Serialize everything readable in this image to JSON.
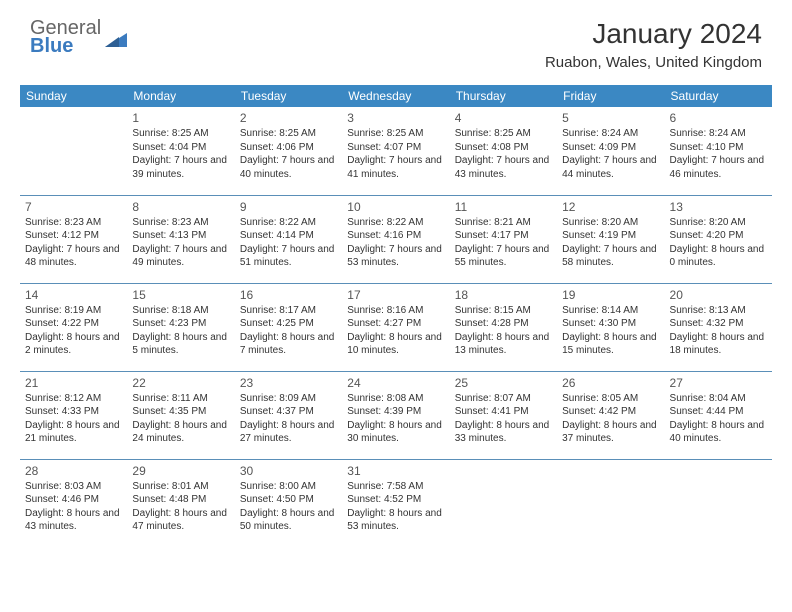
{
  "logo": {
    "line1": "General",
    "line2": "Blue"
  },
  "title": "January 2024",
  "location": "Ruabon, Wales, United Kingdom",
  "colors": {
    "header_bg": "#3b88c3",
    "header_text": "#ffffff",
    "divider": "#5a8fb8",
    "logo_gray": "#666666",
    "logo_blue": "#3b7bbf",
    "body_text": "#333333",
    "background": "#ffffff"
  },
  "day_headers": [
    "Sunday",
    "Monday",
    "Tuesday",
    "Wednesday",
    "Thursday",
    "Friday",
    "Saturday"
  ],
  "days": [
    null,
    {
      "n": "1",
      "sr": "8:25 AM",
      "ss": "4:04 PM",
      "dl": "7 hours and 39 minutes."
    },
    {
      "n": "2",
      "sr": "8:25 AM",
      "ss": "4:06 PM",
      "dl": "7 hours and 40 minutes."
    },
    {
      "n": "3",
      "sr": "8:25 AM",
      "ss": "4:07 PM",
      "dl": "7 hours and 41 minutes."
    },
    {
      "n": "4",
      "sr": "8:25 AM",
      "ss": "4:08 PM",
      "dl": "7 hours and 43 minutes."
    },
    {
      "n": "5",
      "sr": "8:24 AM",
      "ss": "4:09 PM",
      "dl": "7 hours and 44 minutes."
    },
    {
      "n": "6",
      "sr": "8:24 AM",
      "ss": "4:10 PM",
      "dl": "7 hours and 46 minutes."
    },
    {
      "n": "7",
      "sr": "8:23 AM",
      "ss": "4:12 PM",
      "dl": "7 hours and 48 minutes."
    },
    {
      "n": "8",
      "sr": "8:23 AM",
      "ss": "4:13 PM",
      "dl": "7 hours and 49 minutes."
    },
    {
      "n": "9",
      "sr": "8:22 AM",
      "ss": "4:14 PM",
      "dl": "7 hours and 51 minutes."
    },
    {
      "n": "10",
      "sr": "8:22 AM",
      "ss": "4:16 PM",
      "dl": "7 hours and 53 minutes."
    },
    {
      "n": "11",
      "sr": "8:21 AM",
      "ss": "4:17 PM",
      "dl": "7 hours and 55 minutes."
    },
    {
      "n": "12",
      "sr": "8:20 AM",
      "ss": "4:19 PM",
      "dl": "7 hours and 58 minutes."
    },
    {
      "n": "13",
      "sr": "8:20 AM",
      "ss": "4:20 PM",
      "dl": "8 hours and 0 minutes."
    },
    {
      "n": "14",
      "sr": "8:19 AM",
      "ss": "4:22 PM",
      "dl": "8 hours and 2 minutes."
    },
    {
      "n": "15",
      "sr": "8:18 AM",
      "ss": "4:23 PM",
      "dl": "8 hours and 5 minutes."
    },
    {
      "n": "16",
      "sr": "8:17 AM",
      "ss": "4:25 PM",
      "dl": "8 hours and 7 minutes."
    },
    {
      "n": "17",
      "sr": "8:16 AM",
      "ss": "4:27 PM",
      "dl": "8 hours and 10 minutes."
    },
    {
      "n": "18",
      "sr": "8:15 AM",
      "ss": "4:28 PM",
      "dl": "8 hours and 13 minutes."
    },
    {
      "n": "19",
      "sr": "8:14 AM",
      "ss": "4:30 PM",
      "dl": "8 hours and 15 minutes."
    },
    {
      "n": "20",
      "sr": "8:13 AM",
      "ss": "4:32 PM",
      "dl": "8 hours and 18 minutes."
    },
    {
      "n": "21",
      "sr": "8:12 AM",
      "ss": "4:33 PM",
      "dl": "8 hours and 21 minutes."
    },
    {
      "n": "22",
      "sr": "8:11 AM",
      "ss": "4:35 PM",
      "dl": "8 hours and 24 minutes."
    },
    {
      "n": "23",
      "sr": "8:09 AM",
      "ss": "4:37 PM",
      "dl": "8 hours and 27 minutes."
    },
    {
      "n": "24",
      "sr": "8:08 AM",
      "ss": "4:39 PM",
      "dl": "8 hours and 30 minutes."
    },
    {
      "n": "25",
      "sr": "8:07 AM",
      "ss": "4:41 PM",
      "dl": "8 hours and 33 minutes."
    },
    {
      "n": "26",
      "sr": "8:05 AM",
      "ss": "4:42 PM",
      "dl": "8 hours and 37 minutes."
    },
    {
      "n": "27",
      "sr": "8:04 AM",
      "ss": "4:44 PM",
      "dl": "8 hours and 40 minutes."
    },
    {
      "n": "28",
      "sr": "8:03 AM",
      "ss": "4:46 PM",
      "dl": "8 hours and 43 minutes."
    },
    {
      "n": "29",
      "sr": "8:01 AM",
      "ss": "4:48 PM",
      "dl": "8 hours and 47 minutes."
    },
    {
      "n": "30",
      "sr": "8:00 AM",
      "ss": "4:50 PM",
      "dl": "8 hours and 50 minutes."
    },
    {
      "n": "31",
      "sr": "7:58 AM",
      "ss": "4:52 PM",
      "dl": "8 hours and 53 minutes."
    },
    null,
    null,
    null
  ],
  "labels": {
    "sunrise": "Sunrise: ",
    "sunset": "Sunset: ",
    "daylight": "Daylight: "
  }
}
